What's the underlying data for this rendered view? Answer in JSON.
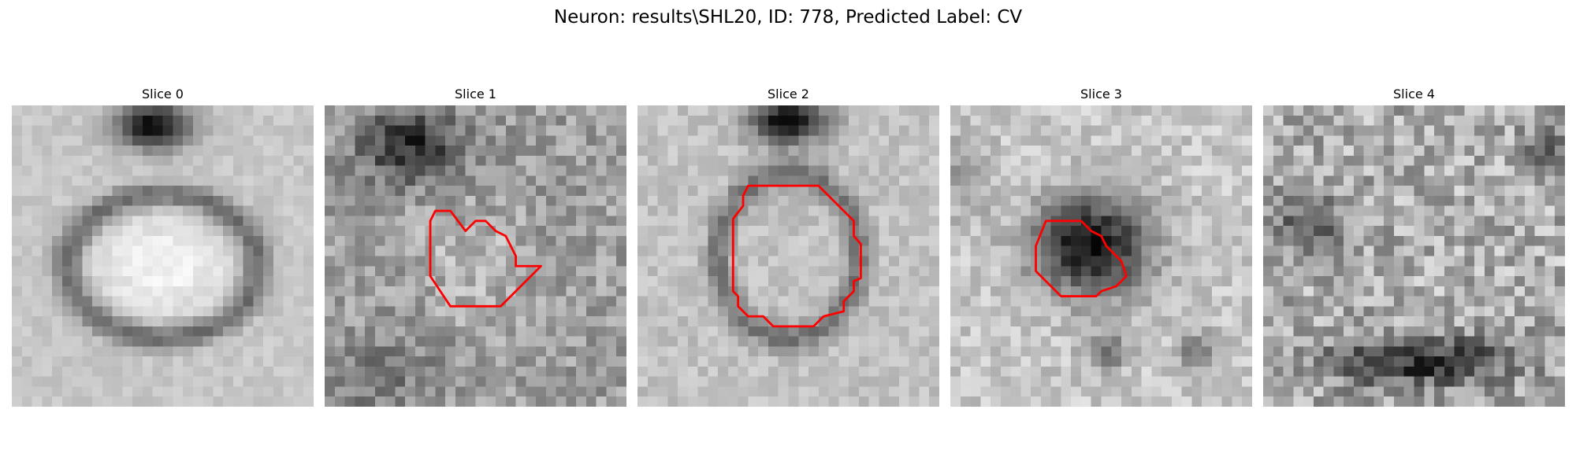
{
  "figure": {
    "title": "Neuron: results\\SHL20, ID: 778, Predicted Label: CV",
    "outline_color": "#ff0000"
  },
  "slices": [
    {
      "label": "Slice 0",
      "has_outline": false
    },
    {
      "label": "Slice 1",
      "has_outline": true
    },
    {
      "label": "Slice 2",
      "has_outline": true
    },
    {
      "label": "Slice 3",
      "has_outline": true
    },
    {
      "label": "Slice 4",
      "has_outline": false
    }
  ]
}
